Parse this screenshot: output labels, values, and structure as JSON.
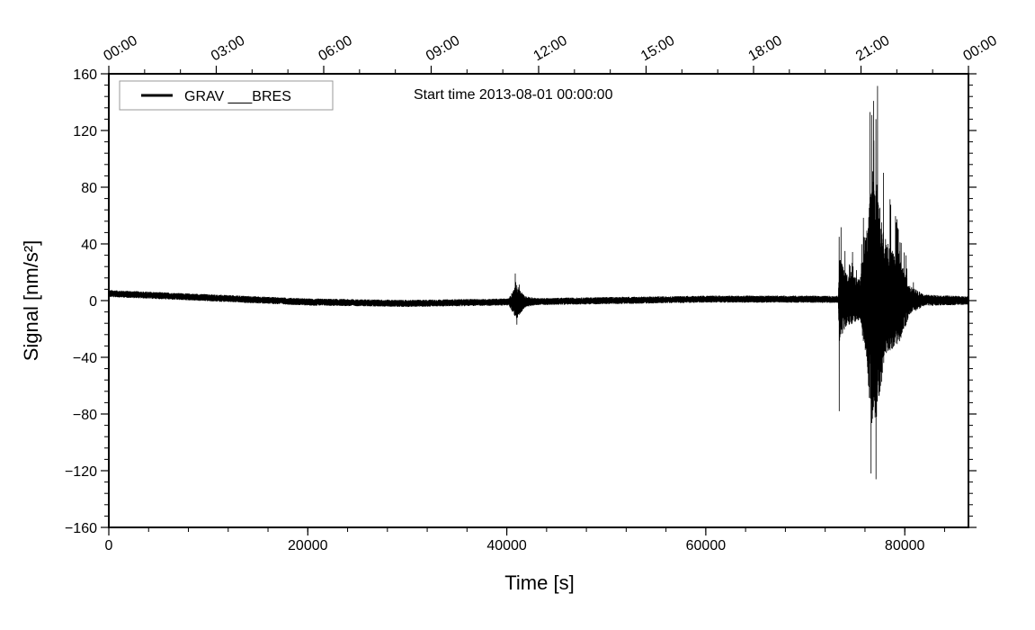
{
  "chart_data": {
    "type": "line",
    "title": "Start time 2013-08-01 00:00:00",
    "xlabel": "Time [s]",
    "ylabel": "Signal [nm/s²]",
    "xlim": [
      0,
      86400
    ],
    "ylim": [
      -160,
      160
    ],
    "x_ticks": [
      0,
      20000,
      40000,
      60000,
      80000
    ],
    "x_tick_labels": [
      "0",
      "20000",
      "40000",
      "60000",
      "80000"
    ],
    "y_ticks": [
      -160,
      -120,
      -80,
      -40,
      0,
      40,
      80,
      120,
      160
    ],
    "y_tick_labels": [
      "−160",
      "−120",
      "−80",
      "−40",
      "0",
      "40",
      "80",
      "120",
      "160"
    ],
    "top_ticks_seconds": [
      0,
      10800,
      21600,
      32400,
      43200,
      54000,
      64800,
      75600,
      86400
    ],
    "top_tick_labels": [
      "00:00",
      "03:00",
      "06:00",
      "09:00",
      "12:00",
      "15:00",
      "18:00",
      "21:00",
      "00:00"
    ],
    "legend": {
      "placement": "top-left",
      "entries": [
        "GRAV ___BRES"
      ]
    },
    "grid": false,
    "series": [
      {
        "name": "GRAV ___BRES",
        "color": "#000000",
        "baseline": [
          [
            0,
            5
          ],
          [
            10000,
            2
          ],
          [
            20000,
            -1
          ],
          [
            30000,
            -2
          ],
          [
            40000,
            -1
          ],
          [
            50000,
            0
          ],
          [
            60000,
            1
          ],
          [
            70000,
            1
          ],
          [
            86400,
            0
          ]
        ],
        "noise_amplitude": [
          [
            0,
            2.5
          ],
          [
            40200,
            2.5
          ],
          [
            40600,
            8
          ],
          [
            41000,
            12
          ],
          [
            41800,
            4
          ],
          [
            43000,
            2.5
          ],
          [
            73300,
            2.5
          ],
          [
            73400,
            30
          ],
          [
            74000,
            20
          ],
          [
            75500,
            14
          ],
          [
            76200,
            50
          ],
          [
            76700,
            95
          ],
          [
            77300,
            80
          ],
          [
            78000,
            40
          ],
          [
            79500,
            30
          ],
          [
            80500,
            10
          ],
          [
            82000,
            4
          ],
          [
            86400,
            3
          ]
        ],
        "peaks": [
          [
            40900,
            13
          ],
          [
            41000,
            -17
          ],
          [
            73400,
            45
          ],
          [
            73400,
            -78
          ],
          [
            74000,
            35
          ],
          [
            76500,
            133
          ],
          [
            76600,
            -122
          ],
          [
            77100,
            128
          ],
          [
            77100,
            -126
          ],
          [
            78300,
            40
          ],
          [
            79500,
            35
          ]
        ]
      }
    ]
  }
}
